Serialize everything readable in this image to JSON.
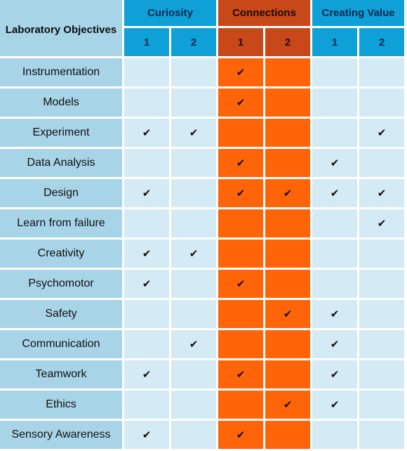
{
  "header": {
    "corner_label": "Laboratory Objectives",
    "groups": [
      {
        "label": "Curiosity",
        "color": "#0ea0d6"
      },
      {
        "label": "Connections",
        "color": "#c8481a"
      },
      {
        "label": "Creating Value",
        "color": "#0ea0d6"
      }
    ],
    "subcolumns": [
      "1",
      "2",
      "1",
      "2",
      "1",
      "2"
    ]
  },
  "check_glyph": "✔",
  "rows": [
    {
      "label": "Instrumentation",
      "checks": [
        false,
        false,
        true,
        false,
        false,
        false
      ]
    },
    {
      "label": "Models",
      "checks": [
        false,
        false,
        true,
        false,
        false,
        false
      ]
    },
    {
      "label": "Experiment",
      "checks": [
        true,
        true,
        false,
        false,
        false,
        true
      ]
    },
    {
      "label": "Data Analysis",
      "checks": [
        false,
        false,
        true,
        false,
        true,
        false
      ]
    },
    {
      "label": "Design",
      "checks": [
        true,
        false,
        true,
        true,
        true,
        true
      ]
    },
    {
      "label": "Learn from failure",
      "checks": [
        false,
        false,
        false,
        false,
        false,
        true
      ]
    },
    {
      "label": "Creativity",
      "checks": [
        true,
        true,
        false,
        false,
        false,
        false
      ]
    },
    {
      "label": "Psychomotor",
      "checks": [
        true,
        false,
        true,
        false,
        false,
        false
      ]
    },
    {
      "label": "Safety",
      "checks": [
        false,
        false,
        false,
        true,
        true,
        false
      ]
    },
    {
      "label": "Communication",
      "checks": [
        false,
        true,
        false,
        false,
        true,
        false
      ]
    },
    {
      "label": "Teamwork",
      "checks": [
        true,
        false,
        true,
        false,
        true,
        false
      ]
    },
    {
      "label": "Ethics",
      "checks": [
        false,
        false,
        false,
        true,
        true,
        false
      ]
    },
    {
      "label": "Sensory Awareness",
      "checks": [
        true,
        false,
        true,
        false,
        false,
        false
      ]
    }
  ]
}
